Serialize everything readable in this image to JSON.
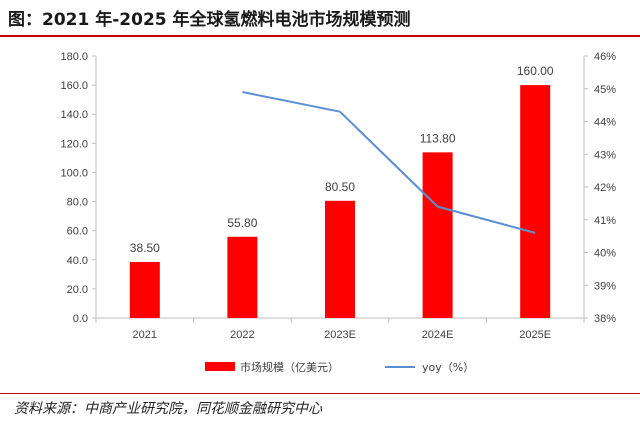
{
  "title": "图：2021 年-2025 年全球氢燃料电池市场规模预测",
  "source": "资料来源：中商产业研究院，同花顺金融研究中心",
  "colors": {
    "bar": "#ff0000",
    "line": "#5b8fd4",
    "rule": "#c00000"
  },
  "chart_data": {
    "type": "bar",
    "categories": [
      "2021",
      "2022",
      "2023E",
      "2024E",
      "2025E"
    ],
    "series": [
      {
        "name": "市场规模（亿美元）",
        "type": "bar",
        "axis": "left",
        "values": [
          38.5,
          55.8,
          80.5,
          113.8,
          160.0
        ],
        "labels": [
          "38.50",
          "55.80",
          "80.50",
          "113.80",
          "160.00"
        ]
      },
      {
        "name": "yoy（%）",
        "type": "line",
        "axis": "right",
        "values": [
          null,
          44.9,
          44.3,
          41.4,
          40.6
        ]
      }
    ],
    "y_left": {
      "ylim": [
        0,
        180
      ],
      "ticks": [
        "0.0",
        "20.0",
        "40.0",
        "60.0",
        "80.0",
        "100.0",
        "120.0",
        "140.0",
        "160.0",
        "180.0"
      ]
    },
    "y_right": {
      "ylim": [
        38,
        46
      ],
      "ticks": [
        "38%",
        "39%",
        "40%",
        "41%",
        "42%",
        "43%",
        "44%",
        "45%",
        "46%"
      ]
    },
    "grid": false,
    "legend": "bottom"
  }
}
